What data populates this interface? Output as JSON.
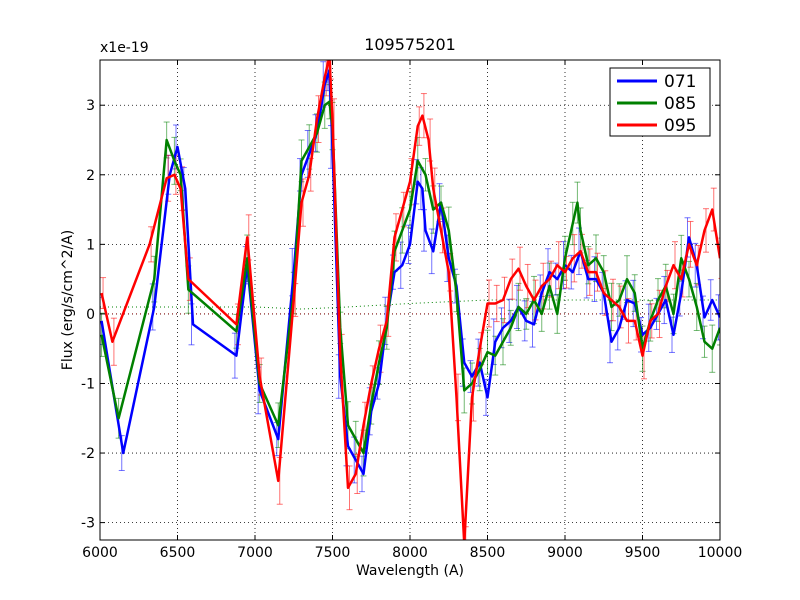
{
  "chart_data": {
    "type": "line",
    "title": "109575201",
    "xlabel": "Wavelength (A)",
    "ylabel": "Flux (erg/s/cm^2/A)",
    "offset_label": "x1e-19",
    "xlim": [
      6000,
      10000
    ],
    "ylim": [
      -3.25,
      3.65
    ],
    "xticks": [
      6000,
      6500,
      7000,
      7500,
      8000,
      8500,
      9000,
      9500,
      10000
    ],
    "xtick_labels": [
      "6000",
      "6500",
      "7000",
      "7500",
      "8000",
      "8500",
      "9000",
      "9500",
      "10000"
    ],
    "yticks": [
      -3,
      -2,
      -1,
      0,
      1,
      2,
      3
    ],
    "ytick_labels": [
      "-3",
      "-2",
      "-1",
      "0",
      "1",
      "2",
      "3"
    ],
    "grid": true,
    "legend_position": "top-right",
    "series": [
      {
        "name": "071",
        "color": "#0000ff",
        "x": [
          6010,
          6150,
          6350,
          6450,
          6500,
          6550,
          6600,
          6880,
          6950,
          7030,
          7150,
          7250,
          7300,
          7350,
          7400,
          7450,
          7480,
          7500,
          7550,
          7600,
          7650,
          7700,
          7750,
          7800,
          7850,
          7900,
          7950,
          8000,
          8050,
          8080,
          8100,
          8150,
          8200,
          8250,
          8300,
          8350,
          8400,
          8450,
          8500,
          8550,
          8600,
          8650,
          8700,
          8750,
          8800,
          8850,
          8900,
          8950,
          9000,
          9050,
          9100,
          9150,
          9200,
          9250,
          9300,
          9350,
          9400,
          9450,
          9500,
          9550,
          9600,
          9650,
          9700,
          9750,
          9800,
          9850,
          9900,
          9950,
          10000
        ],
        "y": [
          -0.1,
          -2.0,
          0.1,
          2.0,
          2.4,
          1.8,
          -0.15,
          -0.6,
          0.7,
          -1.1,
          -1.8,
          0.6,
          2.0,
          2.3,
          2.6,
          3.3,
          3.5,
          2.4,
          -0.9,
          -1.9,
          -2.1,
          -2.3,
          -1.4,
          -1.0,
          -0.1,
          0.6,
          0.7,
          1.0,
          1.9,
          1.8,
          1.2,
          0.9,
          1.6,
          0.8,
          0.4,
          -0.7,
          -0.9,
          -0.7,
          -1.2,
          -0.4,
          -0.2,
          -0.1,
          0.1,
          -0.1,
          -0.15,
          0.3,
          0.6,
          0.5,
          0.7,
          0.6,
          0.9,
          0.5,
          0.5,
          0.3,
          -0.4,
          -0.2,
          0.2,
          0.15,
          -0.3,
          -0.2,
          0.0,
          0.2,
          -0.3,
          0.3,
          1.1,
          0.7,
          -0.05,
          0.2,
          -0.05
        ]
      },
      {
        "name": "085",
        "color": "#008000",
        "x": [
          6010,
          6120,
          6350,
          6430,
          6480,
          6520,
          6570,
          6880,
          6950,
          7030,
          7150,
          7250,
          7300,
          7350,
          7400,
          7450,
          7480,
          7500,
          7550,
          7600,
          7650,
          7700,
          7750,
          7800,
          7850,
          7900,
          7950,
          8000,
          8050,
          8100,
          8150,
          8200,
          8250,
          8300,
          8350,
          8400,
          8450,
          8500,
          8550,
          8600,
          8650,
          8700,
          8750,
          8800,
          8850,
          8900,
          8950,
          9000,
          9050,
          9080,
          9100,
          9150,
          9200,
          9250,
          9300,
          9350,
          9400,
          9450,
          9500,
          9550,
          9600,
          9650,
          9700,
          9750,
          9800,
          9850,
          9900,
          9950,
          10000
        ],
        "y": [
          -0.3,
          -1.5,
          0.5,
          2.5,
          2.2,
          2.0,
          0.35,
          -0.25,
          0.8,
          -1.0,
          -1.6,
          0.3,
          2.2,
          2.4,
          2.6,
          3.0,
          3.05,
          2.7,
          -0.2,
          -1.6,
          -1.8,
          -2.0,
          -1.3,
          -0.7,
          -0.2,
          0.9,
          1.2,
          1.5,
          2.2,
          2.0,
          1.5,
          1.6,
          1.2,
          0.3,
          -1.1,
          -1.0,
          -0.8,
          -0.55,
          -0.6,
          -0.4,
          -0.2,
          0.1,
          0.0,
          0.2,
          0.0,
          0.4,
          0.0,
          0.8,
          1.3,
          1.6,
          1.2,
          0.7,
          0.8,
          0.6,
          0.1,
          0.2,
          0.5,
          0.3,
          -0.5,
          -0.1,
          0.2,
          0.4,
          0.0,
          0.8,
          0.5,
          0.1,
          -0.4,
          -0.5,
          -0.2
        ]
      },
      {
        "name": "095",
        "color": "#ff0000",
        "x": [
          6010,
          6080,
          6320,
          6430,
          6480,
          6520,
          6570,
          6880,
          6950,
          7030,
          7150,
          7250,
          7300,
          7350,
          7400,
          7450,
          7480,
          7500,
          7550,
          7600,
          7650,
          7700,
          7750,
          7800,
          7850,
          7900,
          7950,
          8000,
          8050,
          8080,
          8120,
          8150,
          8200,
          8250,
          8300,
          8350,
          8400,
          8450,
          8500,
          8550,
          8600,
          8650,
          8700,
          8750,
          8800,
          8850,
          8900,
          8950,
          9000,
          9050,
          9100,
          9150,
          9200,
          9250,
          9300,
          9350,
          9400,
          9450,
          9500,
          9550,
          9600,
          9650,
          9700,
          9750,
          9800,
          9850,
          9900,
          9950,
          10000
        ],
        "y": [
          0.3,
          -0.4,
          1.0,
          1.95,
          2.0,
          1.8,
          0.5,
          -0.15,
          1.1,
          -0.9,
          -2.4,
          0.2,
          1.6,
          2.0,
          2.8,
          3.4,
          3.7,
          2.8,
          -0.6,
          -2.5,
          -2.3,
          -1.6,
          -1.0,
          -0.5,
          -0.1,
          1.1,
          1.5,
          1.9,
          2.7,
          2.85,
          2.5,
          1.8,
          1.2,
          0.6,
          -1.2,
          -3.3,
          -1.2,
          -0.5,
          0.15,
          0.15,
          0.2,
          0.5,
          0.65,
          0.4,
          0.2,
          0.4,
          0.5,
          0.7,
          0.6,
          0.8,
          0.9,
          0.6,
          0.6,
          0.3,
          0.2,
          0.1,
          -0.1,
          -0.1,
          -0.6,
          -0.1,
          0.0,
          0.4,
          0.7,
          0.5,
          1.0,
          0.7,
          1.2,
          1.5,
          0.8
        ]
      }
    ],
    "reference_lines": [
      {
        "name": "zero",
        "color": "#800000",
        "style": "dotted",
        "x": [
          6000,
          10000
        ],
        "y": [
          0,
          0
        ]
      },
      {
        "name": "sky",
        "color": "#008000",
        "style": "dotted",
        "x": [
          6000,
          6500,
          7000,
          7300,
          7600,
          8000,
          8500,
          9000,
          9500,
          10000
        ],
        "y": [
          0.1,
          0.1,
          0.1,
          0.07,
          0.1,
          0.15,
          0.2,
          0.2,
          0.2,
          0.2
        ]
      }
    ]
  }
}
